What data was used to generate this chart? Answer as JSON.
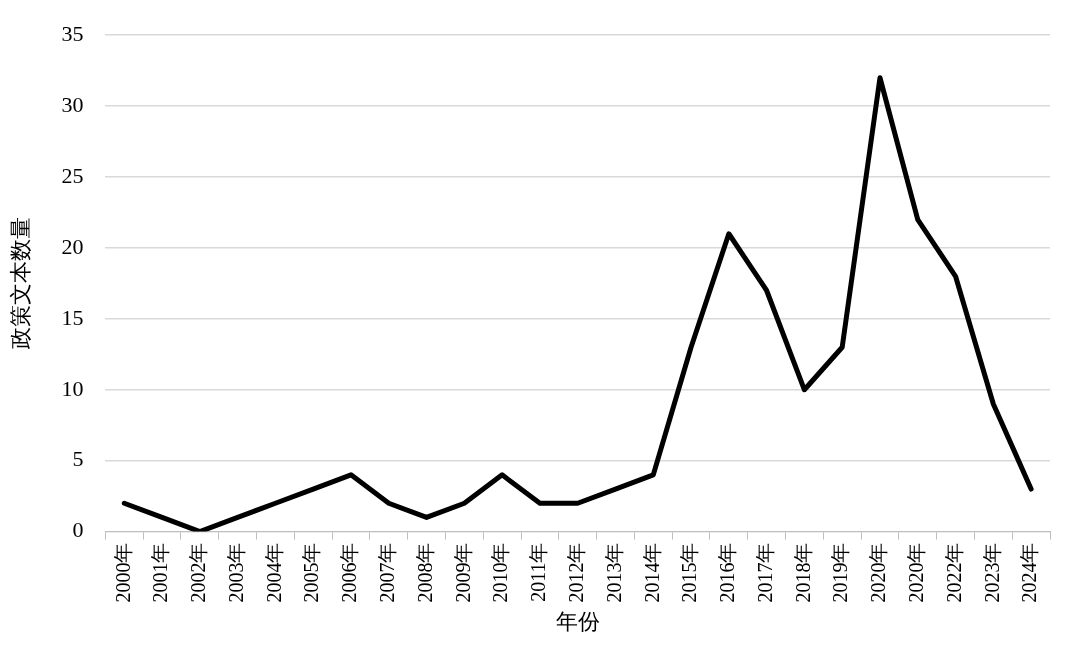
{
  "chart_data": {
    "type": "line",
    "xlabel": "年份",
    "ylabel": "政策文本数量",
    "categories": [
      "2000年",
      "2001年",
      "2002年",
      "2003年",
      "2004年",
      "2005年",
      "2006年",
      "2007年",
      "2008年",
      "2009年",
      "2010年",
      "2011年",
      "2012年",
      "2013年",
      "2014年",
      "2015年",
      "2016年",
      "2017年",
      "2018年",
      "2019年",
      "2020年",
      "2020年",
      "2022年",
      "2023年",
      "2024年"
    ],
    "series": [
      {
        "color": "#000000",
        "values": [
          2,
          1,
          0,
          1,
          2,
          3,
          4,
          2,
          1,
          2,
          4,
          2,
          2,
          3,
          4,
          13,
          21,
          17,
          10,
          13,
          32,
          22,
          18,
          9,
          3
        ]
      }
    ],
    "ylim": [
      0,
      35
    ],
    "yticks": [
      0,
      5,
      10,
      15,
      20,
      25,
      30,
      35
    ],
    "grid": "y",
    "legend": false,
    "marker": "none",
    "line_style": "solid"
  }
}
